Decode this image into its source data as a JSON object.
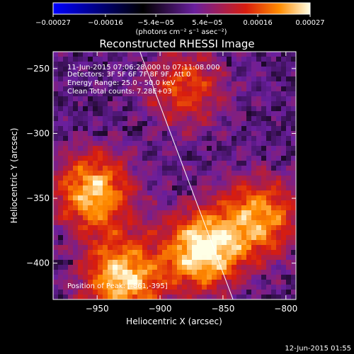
{
  "chart_data": {
    "type": "heatmap",
    "title": "Reconstructed RHESSI Image",
    "xlabel": "Heliocentric X (arcsec)",
    "ylabel": "Heliocentric Y (arcsec)",
    "xlim": [
      -985,
      -792
    ],
    "ylim": [
      -428,
      -237
    ],
    "x_ticks": [
      -950,
      -900,
      -850,
      -800
    ],
    "y_ticks": [
      -250,
      -300,
      -350,
      -400
    ],
    "x_tick_labels": [
      "−950",
      "−900",
      "−850",
      "−800"
    ],
    "y_tick_labels": [
      "−250",
      "−300",
      "−350",
      "−400"
    ],
    "colorbar": {
      "min": -0.00027,
      "max": 0.00027,
      "ticks": [
        -0.00027,
        -0.00016,
        -5.4e-05,
        5.4e-05,
        0.00016,
        0.00027
      ],
      "tick_labels": [
        "−0.00027",
        "−0.00016",
        "−5.4e−05",
        "5.4e−05",
        "0.00016",
        "0.00027"
      ],
      "unit_label": "(photons cm⁻² s⁻¹ asec⁻²)",
      "colors": [
        "#0000ff",
        "#000000",
        "#6a1f9e",
        "#d81d0e",
        "#ff8c00",
        "#ffffe6"
      ]
    },
    "limb_line": {
      "x": [
        -916,
        -842
      ],
      "y": [
        -237,
        -428
      ]
    },
    "bright_regions": [
      {
        "x": -866,
        "y": -390,
        "intensity": 1.0
      },
      {
        "x": -953,
        "y": -345,
        "intensity": 0.85
      },
      {
        "x": -930,
        "y": -412,
        "intensity": 0.9
      },
      {
        "x": -820,
        "y": -365,
        "intensity": 0.75
      },
      {
        "x": -880,
        "y": -265,
        "intensity": 0.55
      }
    ]
  },
  "annotations": {
    "time_range": "11-Jun-2015 07:06:28.000 to 07:11:08.000",
    "detectors": "Detectors: 3F 5F 6F 7F 8F 9F, Att 0",
    "energy": "Energy Range: 25.0 - 50.0 keV",
    "clean": "Clean     Total counts: 7.28E+03",
    "position": "Position of Peak: [-861,-395]"
  },
  "footer": {
    "timestamp": "12-Jun-2015 01:55"
  }
}
